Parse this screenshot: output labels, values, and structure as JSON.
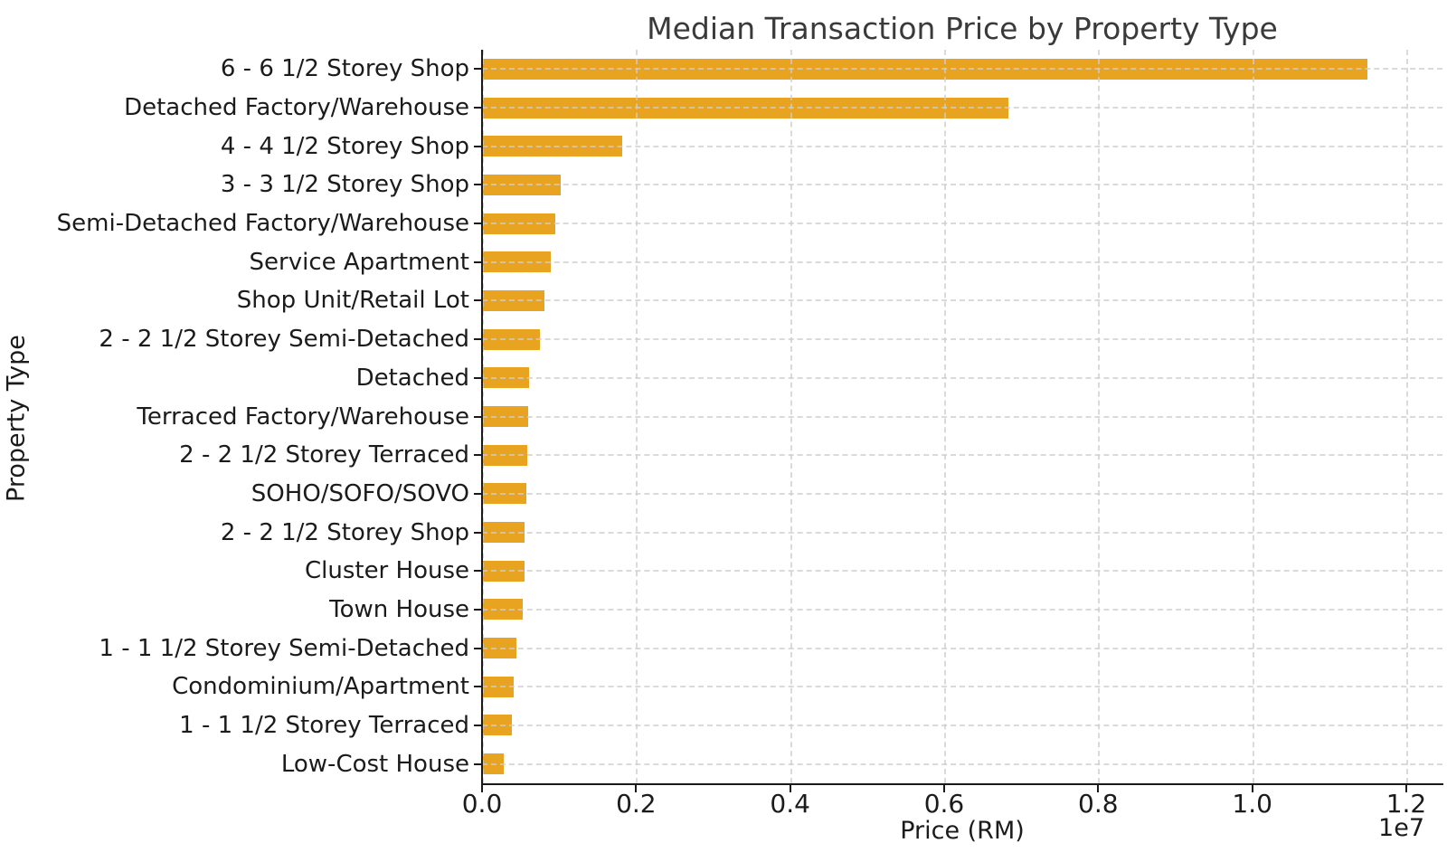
{
  "chart_data": {
    "type": "bar",
    "orientation": "horizontal",
    "title": "Median Transaction Price by Property Type",
    "xlabel": "Price (RM)",
    "ylabel": "Property Type",
    "x_offset_text": "1e7",
    "categories": [
      "6 - 6 1/2 Storey Shop",
      "Detached Factory/Warehouse",
      "4 - 4 1/2 Storey Shop",
      "3 - 3 1/2 Storey Shop",
      "Semi-Detached Factory/Warehouse",
      "Service Apartment",
      "Shop Unit/Retail Lot",
      "2 - 2 1/2 Storey Semi-Detached",
      "Detached",
      "Terraced Factory/Warehouse",
      "2 - 2 1/2 Storey Terraced",
      "SOHO/SOFO/SOVO",
      "2 - 2 1/2 Storey Shop",
      "Cluster House",
      "Town House",
      "1 - 1 1/2 Storey Semi-Detached",
      "Condominium/Apartment",
      "1 - 1 1/2 Storey Terraced",
      "Low-Cost House"
    ],
    "values": [
      11500000,
      6830000,
      1820000,
      1020000,
      950000,
      890000,
      815000,
      750000,
      610000,
      600000,
      590000,
      580000,
      556000,
      550000,
      530000,
      450000,
      410000,
      390000,
      280000
    ],
    "xlim": [
      0,
      12470000
    ],
    "xticks": [
      0,
      2000000,
      4000000,
      6000000,
      8000000,
      10000000,
      12000000
    ],
    "xtick_labels": [
      "0.0",
      "0.2",
      "0.4",
      "0.6",
      "0.8",
      "1.0",
      "1.2"
    ],
    "bar_color": "#E8A320",
    "grid": true,
    "grid_style": "dashed",
    "grid_color": "#cdcdcd",
    "background_color": "#ffffff"
  }
}
